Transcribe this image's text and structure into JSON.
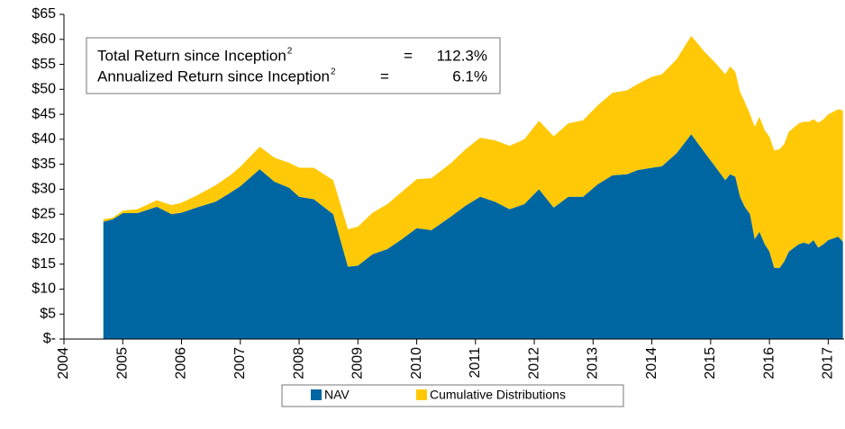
{
  "chart_data": {
    "type": "stacked_area",
    "x": [
      2004.67,
      2004.83,
      2005.0,
      2005.25,
      2005.58,
      2005.83,
      2006.0,
      2006.25,
      2006.58,
      2006.83,
      2007.0,
      2007.33,
      2007.58,
      2007.83,
      2008.0,
      2008.25,
      2008.58,
      2008.83,
      2009.0,
      2009.25,
      2009.5,
      2009.75,
      2010.0,
      2010.25,
      2010.58,
      2010.83,
      2011.08,
      2011.33,
      2011.58,
      2011.83,
      2012.08,
      2012.33,
      2012.58,
      2012.83,
      2013.08,
      2013.33,
      2013.58,
      2013.75,
      2014.0,
      2014.17,
      2014.42,
      2014.67,
      2014.92,
      2015.08,
      2015.25,
      2015.33,
      2015.42,
      2015.5,
      2015.58,
      2015.67,
      2015.75,
      2015.83,
      2015.92,
      2016.0,
      2016.08,
      2016.17,
      2016.25,
      2016.33,
      2016.5,
      2016.58,
      2016.67,
      2016.75,
      2016.83,
      2016.92,
      2017.0,
      2017.17,
      2017.25
    ],
    "series": [
      {
        "name": "NAV",
        "color": "#0066a1",
        "values": [
          23.5,
          24,
          25.2,
          25.2,
          26.5,
          25,
          25.3,
          26.3,
          27.5,
          29.3,
          30.6,
          34,
          31.5,
          30.3,
          28.5,
          28,
          25,
          14.5,
          14.7,
          17,
          18,
          20,
          22.2,
          21.8,
          24.5,
          26.7,
          28.5,
          27.5,
          26,
          27,
          30,
          26.3,
          28.5,
          28.5,
          31,
          32.8,
          33,
          33.8,
          34.3,
          34.6,
          37.2,
          41,
          37,
          34.5,
          31.8,
          33,
          32.5,
          28.5,
          26.5,
          25,
          20,
          21.5,
          19,
          17.5,
          14.3,
          14.2,
          15.5,
          17.5,
          19,
          19.3,
          19,
          19.8,
          18.3,
          19,
          19.8,
          20.5,
          19.5
        ]
      },
      {
        "name": "Cumulative Distributions",
        "color": "#ffc907",
        "values": [
          0.5,
          0.3,
          0.5,
          0.8,
          1.3,
          1.8,
          2,
          2.4,
          3.3,
          3.5,
          3.9,
          4.5,
          4.8,
          5,
          5.8,
          6.3,
          6.8,
          7.5,
          7.8,
          8.3,
          9,
          9.5,
          9.8,
          10.4,
          10.7,
          11.3,
          11.8,
          12.3,
          12.7,
          13,
          13.7,
          14.3,
          14.7,
          15.3,
          15.8,
          16.5,
          16.8,
          17.2,
          18.2,
          18.4,
          18.8,
          19.7,
          20.2,
          20.8,
          21.2,
          21.6,
          21,
          21,
          21,
          20,
          22.5,
          23,
          22.8,
          23,
          23.5,
          23.8,
          23.5,
          24,
          24.2,
          24.2,
          24.5,
          24.2,
          25,
          25,
          25.2,
          25.5,
          26.3
        ]
      }
    ],
    "xlim": [
      2004,
      2017.27
    ],
    "xticks": [
      2004,
      2005,
      2006,
      2007,
      2008,
      2009,
      2010,
      2011,
      2012,
      2013,
      2014,
      2015,
      2016,
      2017
    ],
    "ylim": [
      0,
      65
    ],
    "yticks": [
      {
        "value": 0,
        "label": "$-"
      },
      {
        "value": 5,
        "label": "$5"
      },
      {
        "value": 10,
        "label": "$10"
      },
      {
        "value": 15,
        "label": "$15"
      },
      {
        "value": 20,
        "label": "$20"
      },
      {
        "value": 25,
        "label": "$25"
      },
      {
        "value": 30,
        "label": "$30"
      },
      {
        "value": 35,
        "label": "$35"
      },
      {
        "value": 40,
        "label": "$40"
      },
      {
        "value": 45,
        "label": "$45"
      },
      {
        "value": 50,
        "label": "$50"
      },
      {
        "value": 55,
        "label": "$55"
      },
      {
        "value": 60,
        "label": "$60"
      },
      {
        "value": 65,
        "label": "$65"
      }
    ],
    "annotations": [
      {
        "text": "Total Return since Inception",
        "sup": "2",
        "equals": "=",
        "value": "112.3%"
      },
      {
        "text": "Annualized Return since Inception",
        "sup": "2",
        "equals": "=",
        "value": "6.1%"
      }
    ],
    "legend": "bottom"
  }
}
